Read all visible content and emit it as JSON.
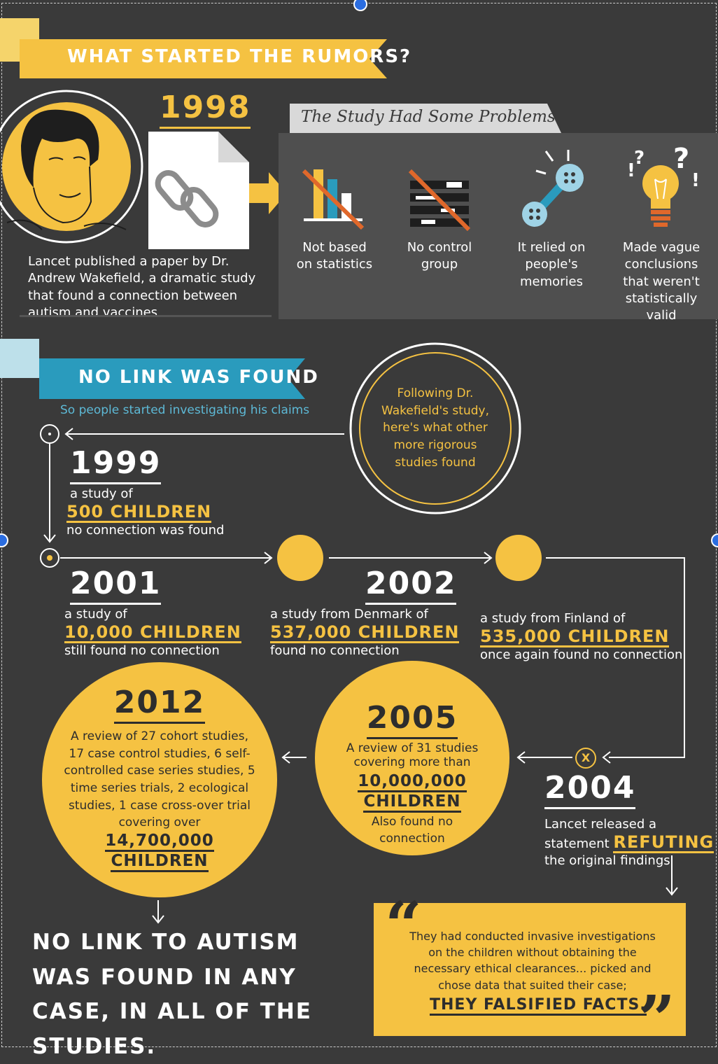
{
  "section1": {
    "banner": "WHAT STARTED THE RUMORS?",
    "year": "1998",
    "description": "Lancet published a paper by Dr. Andrew Wakefield, a dramatic study that found a connection between autism and vaccines",
    "problems_title": "The Study Had Some Problems",
    "problems": [
      {
        "label": "Not based on statistics",
        "icon": "crossed-bar-chart-icon"
      },
      {
        "label": "No control group",
        "icon": "crossed-group-icon"
      },
      {
        "label": "It relied on people's memories",
        "icon": "connected-buttons-icon"
      },
      {
        "label": "Made vague conclusions that weren't statistically valid",
        "icon": "question-lightbulb-icon"
      }
    ]
  },
  "section2": {
    "banner": "NO LINK WAS FOUND",
    "subtitle": "So people started investigating his claims",
    "circle_note": "Following Dr. Wakefield's study, here's what other more rigorous studies found",
    "studies": {
      "y1999": {
        "year": "1999",
        "pre": "a study of",
        "highlight": "500 CHILDREN",
        "post": "no connection was found"
      },
      "y2001": {
        "year": "2001",
        "pre": "a study of",
        "highlight": "10,000 CHILDREN",
        "post": "still found no connection"
      },
      "y2002": {
        "year": "2002",
        "pre": "a study from Denmark of",
        "highlight": "537,000 CHILDREN",
        "post": "found no connection"
      },
      "finland": {
        "pre": "a study from Finland of",
        "highlight": "535,000 CHILDREN",
        "post": "once again found no connection"
      },
      "y2004": {
        "year": "2004",
        "pre": "Lancet released a",
        "pre2": "statement",
        "highlight": "REFUTING",
        "post": "the original findings",
        "marker": "X"
      },
      "y2005": {
        "year": "2005",
        "pre": "A review of 31 studies covering more than",
        "highlight1": "10,000,000",
        "highlight2": "CHILDREN",
        "post": "Also found no connection"
      },
      "y2012": {
        "year": "2012",
        "pre": "A review of 27 cohort studies, 17 case control studies, 6 self-controlled case series studies, 5 time series trials, 2 ecological studies, 1 case cross-over trial covering over",
        "highlight1": "14,700,000",
        "highlight2": "CHILDREN"
      }
    },
    "conclusion": "NO LINK TO AUTISM WAS FOUND IN ANY CASE, IN ALL OF THE STUDIES.",
    "quote": {
      "open": "“",
      "close": "”",
      "text": "They had conducted invasive investigations on the children without obtaining the necessary ethical clearances... picked and chose data that suited their case;",
      "highlight": "THEY FALSIFIED FACTS."
    }
  },
  "colors": {
    "background": "#3a3a3a",
    "yellow": "#f5c242",
    "blue": "#2a9bbd",
    "panel": "#4f4f4f",
    "orange": "#e0682b"
  }
}
